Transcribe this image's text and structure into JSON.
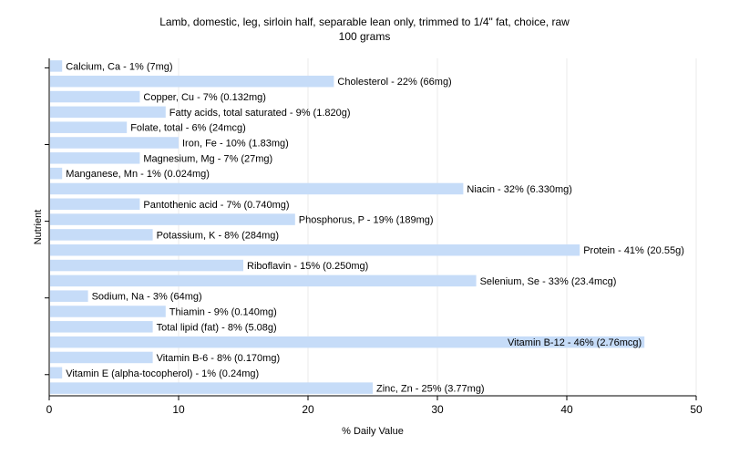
{
  "chart_data": {
    "type": "bar",
    "orientation": "horizontal",
    "title": "Lamb, domestic, leg, sirloin half, separable lean only, trimmed to 1/4\" fat, choice, raw",
    "subtitle": "100 grams",
    "xlabel": "% Daily Value",
    "ylabel": "Nutrient",
    "xlim": [
      0,
      50
    ],
    "xticks": [
      0,
      10,
      20,
      30,
      40,
      50
    ],
    "grid": true,
    "bar_color": "#c6dcf8",
    "categories": [
      "Calcium, Ca",
      "Cholesterol",
      "Copper, Cu",
      "Fatty acids, total saturated",
      "Folate, total",
      "Iron, Fe",
      "Magnesium, Mg",
      "Manganese, Mn",
      "Niacin",
      "Pantothenic acid",
      "Phosphorus, P",
      "Potassium, K",
      "Protein",
      "Riboflavin",
      "Selenium, Se",
      "Sodium, Na",
      "Thiamin",
      "Total lipid (fat)",
      "Vitamin B-12",
      "Vitamin B-6",
      "Vitamin E (alpha-tocopherol)",
      "Zinc, Zn"
    ],
    "values": [
      1,
      22,
      7,
      9,
      6,
      10,
      7,
      1,
      32,
      7,
      19,
      8,
      41,
      15,
      33,
      3,
      9,
      8,
      46,
      8,
      1,
      25
    ],
    "labels": [
      "Calcium, Ca - 1% (7mg)",
      "Cholesterol - 22% (66mg)",
      "Copper, Cu - 7% (0.132mg)",
      "Fatty acids, total saturated - 9% (1.820g)",
      "Folate, total - 6% (24mcg)",
      "Iron, Fe - 10% (1.83mg)",
      "Magnesium, Mg - 7% (27mg)",
      "Manganese, Mn - 1% (0.024mg)",
      "Niacin - 32% (6.330mg)",
      "Pantothenic acid - 7% (0.740mg)",
      "Phosphorus, P - 19% (189mg)",
      "Potassium, K - 8% (284mg)",
      "Protein - 41% (20.55g)",
      "Riboflavin - 15% (0.250mg)",
      "Selenium, Se - 33% (23.4mcg)",
      "Sodium, Na - 3% (64mg)",
      "Thiamin - 9% (0.140mg)",
      "Total lipid (fat) - 8% (5.08g)",
      "Vitamin B-12 - 46% (2.76mcg)",
      "Vitamin B-6 - 8% (0.170mg)",
      "Vitamin E (alpha-tocopherol) - 1% (0.24mg)",
      "Zinc, Zn - 25% (3.77mg)"
    ]
  }
}
